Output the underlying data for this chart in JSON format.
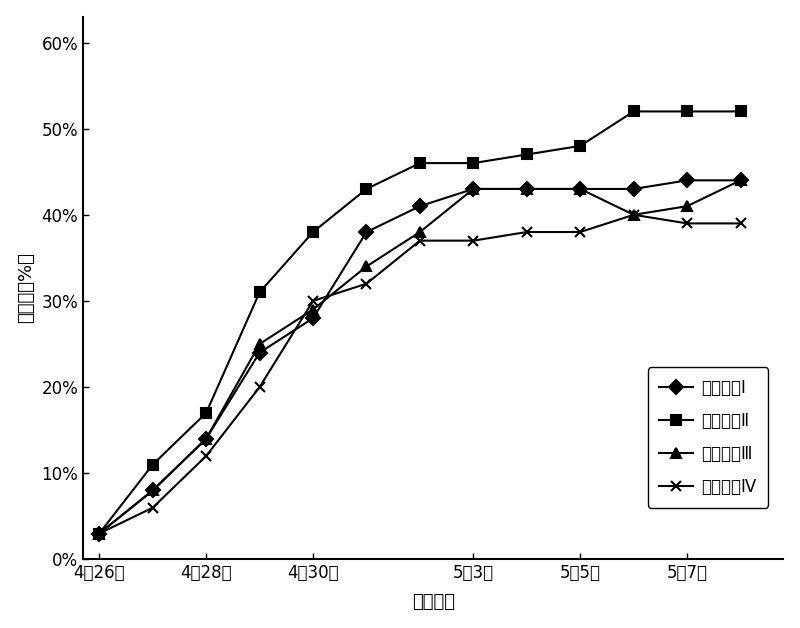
{
  "x_positions": [
    0,
    1,
    2,
    3,
    4,
    5,
    6,
    7,
    8,
    9,
    10,
    11,
    12
  ],
  "series": [
    {
      "name": "处理水平Ⅰ",
      "marker": "D",
      "values": [
        3,
        8,
        14,
        24,
        28,
        38,
        41,
        43,
        43,
        43,
        43,
        44,
        44
      ]
    },
    {
      "name": "处理水平Ⅱ",
      "marker": "s",
      "values": [
        3,
        11,
        17,
        31,
        38,
        43,
        46,
        46,
        47,
        48,
        52,
        52,
        52
      ]
    },
    {
      "name": "处理水平Ⅲ",
      "marker": "^",
      "values": [
        3,
        8,
        14,
        25,
        29,
        34,
        38,
        43,
        43,
        43,
        40,
        41,
        44
      ]
    },
    {
      "name": "处理水平Ⅳ",
      "marker": "x",
      "values": [
        3,
        6,
        12,
        20,
        30,
        32,
        37,
        37,
        38,
        38,
        40,
        39,
        39
      ]
    }
  ],
  "tick_pos": [
    0,
    2,
    4,
    7,
    9,
    11
  ],
  "tick_labels": [
    "4月26日",
    "4月28日",
    "4月30日",
    "5月3日",
    "5月5日",
    "5月7日"
  ],
  "ylabel": "发芽率（%）",
  "xlabel": "生长日期",
  "ytick_labels": [
    "0%",
    "10%",
    "20%",
    "30%",
    "40%",
    "50%",
    "60%"
  ],
  "ytick_values": [
    0,
    10,
    20,
    30,
    40,
    50,
    60
  ],
  "ylim": [
    0,
    63
  ],
  "xlim": [
    -0.3,
    12.8
  ],
  "background_color": "#ffffff",
  "line_color": "#000000",
  "line_width": 1.5,
  "marker_size": 7
}
